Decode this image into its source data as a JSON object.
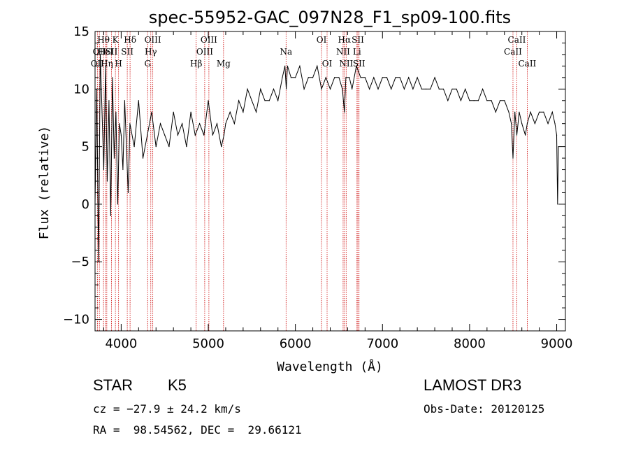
{
  "chart_data": {
    "type": "line",
    "title": "spec-55952-GAC_097N28_F1_sp09-100.fits",
    "xlabel": "Wavelength (Å)",
    "ylabel": "Flux (relative)",
    "xlim": [
      3700,
      9100
    ],
    "ylim": [
      -11,
      15
    ],
    "xticks": [
      4000,
      5000,
      6000,
      7000,
      8000,
      9000
    ],
    "xtick_labels": [
      "4000",
      "5000",
      "6000",
      "7000",
      "8000",
      "9000"
    ],
    "yticks": [
      -10,
      -5,
      0,
      5,
      10,
      15
    ],
    "ytick_labels": [
      "−10",
      "−5",
      "0",
      "5",
      "10",
      "15"
    ],
    "grid": false,
    "series": [
      {
        "name": "flux",
        "x": [
          3700,
          3720,
          3740,
          3760,
          3780,
          3800,
          3820,
          3840,
          3860,
          3880,
          3900,
          3920,
          3940,
          3960,
          3980,
          4000,
          4020,
          4040,
          4060,
          4080,
          4100,
          4150,
          4200,
          4250,
          4300,
          4350,
          4400,
          4450,
          4500,
          4550,
          4600,
          4650,
          4700,
          4750,
          4800,
          4850,
          4900,
          4950,
          5000,
          5050,
          5100,
          5150,
          5180,
          5200,
          5250,
          5300,
          5350,
          5400,
          5450,
          5500,
          5550,
          5600,
          5650,
          5700,
          5750,
          5800,
          5850,
          5880,
          5895,
          5910,
          5950,
          6000,
          6050,
          6100,
          6150,
          6200,
          6250,
          6300,
          6350,
          6400,
          6450,
          6500,
          6540,
          6563,
          6580,
          6620,
          6650,
          6700,
          6750,
          6800,
          6850,
          6900,
          6950,
          7000,
          7050,
          7100,
          7150,
          7200,
          7250,
          7300,
          7350,
          7400,
          7450,
          7500,
          7550,
          7600,
          7650,
          7700,
          7750,
          7800,
          7850,
          7900,
          7950,
          8000,
          8050,
          8100,
          8150,
          8200,
          8250,
          8300,
          8350,
          8400,
          8450,
          8480,
          8498,
          8520,
          8542,
          8570,
          8600,
          8640,
          8662,
          8700,
          8750,
          8800,
          8850,
          8900,
          8950,
          8980,
          9000,
          9010,
          9020
        ],
        "y": [
          0,
          10,
          -5,
          13,
          8,
          3,
          12,
          2,
          9,
          -1,
          11,
          4,
          8,
          0,
          7,
          6,
          3,
          9,
          5,
          1,
          7,
          5,
          9,
          4,
          6,
          8,
          5,
          7,
          6,
          5,
          8,
          6,
          7,
          5,
          8,
          6,
          7,
          6,
          9,
          6,
          7,
          5,
          6,
          7,
          8,
          7,
          9,
          8,
          10,
          9,
          8,
          10,
          9,
          9,
          10,
          9,
          11,
          12,
          10,
          12,
          11,
          11,
          12,
          10,
          11,
          11,
          12,
          10,
          11,
          10,
          11,
          11,
          10,
          8,
          11,
          11,
          10,
          12,
          11,
          11,
          10,
          11,
          10,
          11,
          11,
          10,
          11,
          11,
          10,
          11,
          10,
          11,
          10,
          10,
          10,
          11,
          10,
          10,
          9,
          10,
          10,
          9,
          10,
          9,
          9,
          9,
          10,
          9,
          9,
          8,
          9,
          9,
          8,
          7,
          4,
          8,
          6,
          8,
          7,
          6,
          7,
          8,
          7,
          8,
          8,
          7,
          8,
          7,
          6,
          0,
          5
        ]
      }
    ],
    "lines": [
      {
        "wl": 3727,
        "labels": [
          "OII"
        ],
        "row": 2
      },
      {
        "wl": 3750,
        "labels": [
          "OII"
        ],
        "row": 1
      },
      {
        "wl": 3797,
        "labels": [
          "Hθ"
        ],
        "row": 0
      },
      {
        "wl": 3820,
        "labels": [
          "HeI"
        ],
        "row": 1
      },
      {
        "wl": 3835,
        "labels": [
          "Hη"
        ],
        "row": 2
      },
      {
        "wl": 3889,
        "labels": [
          "SII"
        ],
        "row": 1
      },
      {
        "wl": 3934,
        "labels": [
          "K"
        ],
        "row": 0
      },
      {
        "wl": 3970,
        "labels": [
          "H"
        ],
        "row": 2
      },
      {
        "wl": 4070,
        "labels": [
          "SII"
        ],
        "row": 1
      },
      {
        "wl": 4102,
        "labels": [
          "Hδ"
        ],
        "row": 0
      },
      {
        "wl": 4304,
        "labels": [
          "G"
        ],
        "row": 2
      },
      {
        "wl": 4340,
        "labels": [
          "Hγ"
        ],
        "row": 1
      },
      {
        "wl": 4363,
        "labels": [
          "OIII"
        ],
        "row": 0
      },
      {
        "wl": 4861,
        "labels": [
          "Hβ"
        ],
        "row": 2
      },
      {
        "wl": 4959,
        "labels": [
          "OIII"
        ],
        "row": 1
      },
      {
        "wl": 5007,
        "labels": [
          "OIII"
        ],
        "row": 0
      },
      {
        "wl": 5175,
        "labels": [
          "Mg"
        ],
        "row": 2
      },
      {
        "wl": 5893,
        "labels": [
          "Na"
        ],
        "row": 1
      },
      {
        "wl": 6300,
        "labels": [
          "OI"
        ],
        "row": 0
      },
      {
        "wl": 6364,
        "labels": [
          "OI"
        ],
        "row": 2
      },
      {
        "wl": 6548,
        "labels": [
          "NII"
        ],
        "row": 1
      },
      {
        "wl": 6563,
        "labels": [
          "Hα"
        ],
        "row": 0
      },
      {
        "wl": 6583,
        "labels": [
          "NII"
        ],
        "row": 2
      },
      {
        "wl": 6707,
        "labels": [
          "Li"
        ],
        "row": 1
      },
      {
        "wl": 6717,
        "labels": [
          "SII"
        ],
        "row": 0
      },
      {
        "wl": 6731,
        "labels": [
          "SII"
        ],
        "row": 2
      },
      {
        "wl": 8498,
        "labels": [
          "CaII"
        ],
        "row": 1
      },
      {
        "wl": 8542,
        "labels": [
          "CaII"
        ],
        "row": 0
      },
      {
        "wl": 8662,
        "labels": [
          "CaII"
        ],
        "row": 2
      }
    ]
  },
  "info": {
    "class": "STAR",
    "subclass": "K5",
    "cz": "cz = −27.9 ± 24.2 km/s",
    "radec": "RA =  98.54562, DEC =  29.66121",
    "survey": "LAMOST DR3",
    "obsdate": "Obs-Date: 20120125"
  }
}
